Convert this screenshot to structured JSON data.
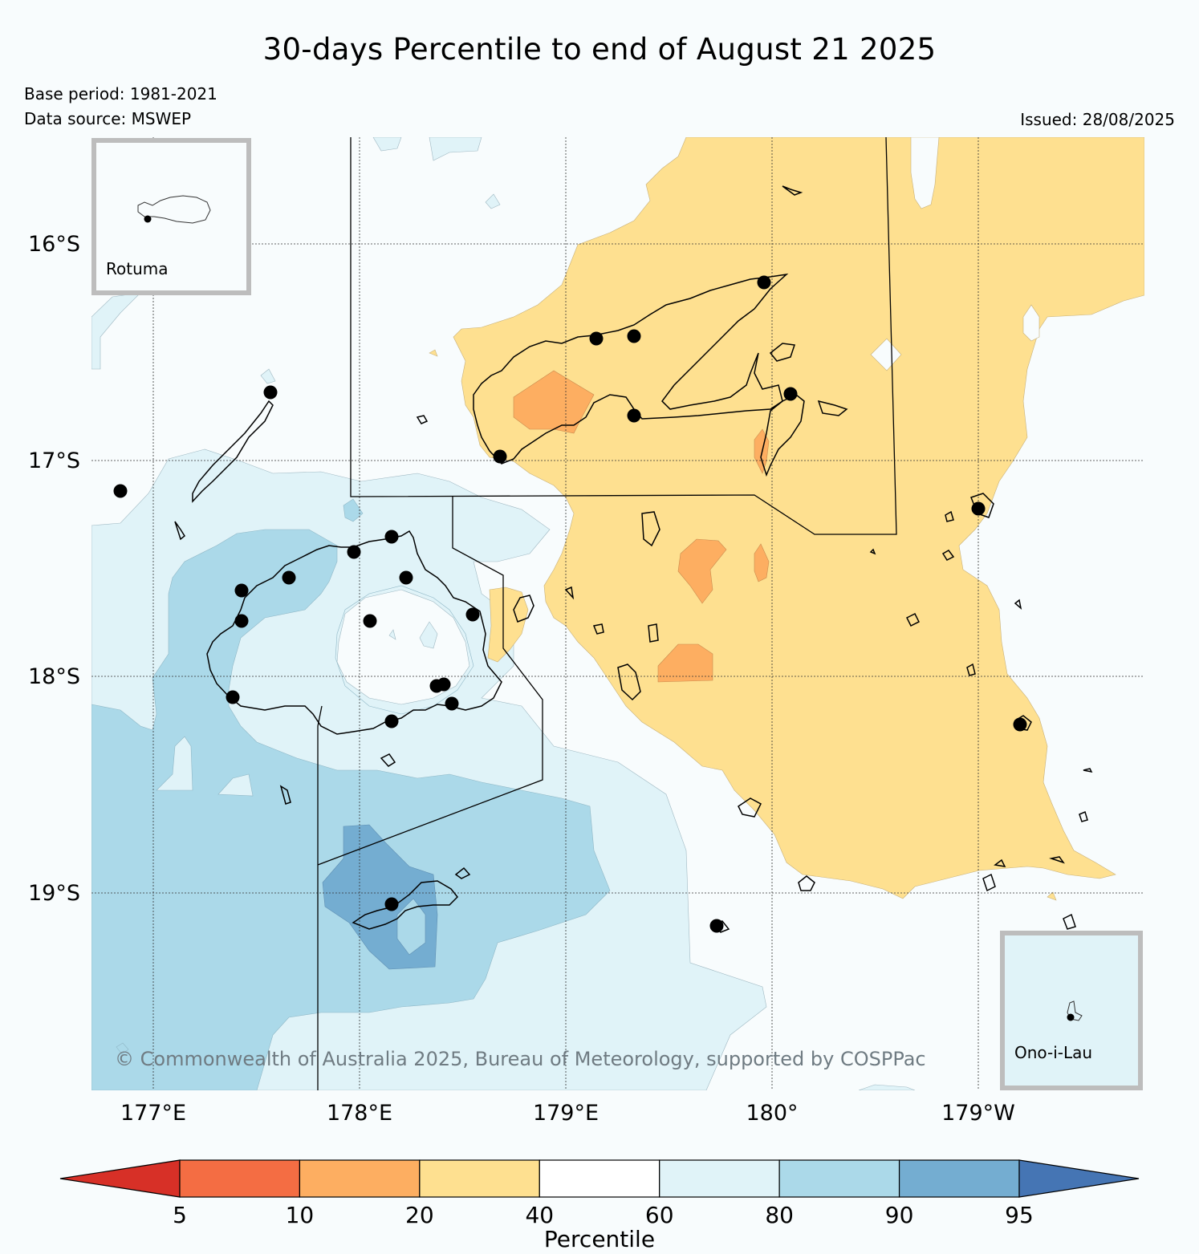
{
  "title": "30-days Percentile to end of August 21 2025",
  "meta": {
    "base_period": "Base period: 1981-2021",
    "data_source": "Data source: MSWEP",
    "issued": "Issued: 28/08/2025"
  },
  "map": {
    "lat_labels": [
      "16°S",
      "17°S",
      "18°S",
      "19°S"
    ],
    "lon_labels": [
      "177°E",
      "178°E",
      "179°E",
      "180°",
      "179°W"
    ],
    "credit": "© Commonwealth of Australia 2025, Bureau of Meteorology, supported by COSPPac",
    "insets": {
      "rotuma": "Rotuma",
      "ono_i_lau": "Ono-i-Lau"
    }
  },
  "colorbar": {
    "title": "Percentile",
    "ticks": [
      "5",
      "10",
      "20",
      "40",
      "60",
      "80",
      "90",
      "95"
    ],
    "colors": [
      "#d73027",
      "#f46d43",
      "#fdae61",
      "#fee090",
      "#ffffff",
      "#e0f3f8",
      "#abd9e9",
      "#74add1",
      "#4575b4"
    ]
  },
  "palette": {
    "cat_20_40": "#fee090",
    "cat_10_20": "#fdae61",
    "cat_40_60": "#f8fcfd",
    "cat_60_80": "#e0f3f8",
    "cat_80_90": "#abd9e9",
    "cat_90_95": "#74add1"
  }
}
